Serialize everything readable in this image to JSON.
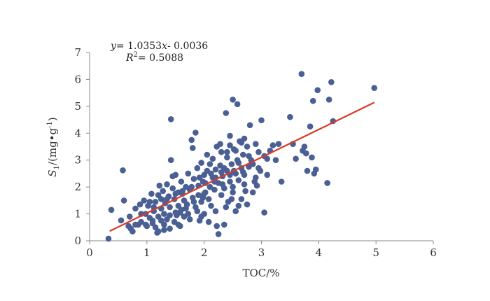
{
  "chart_data": {
    "type": "scatter",
    "title": "",
    "xlabel": "TOC/%",
    "ylabel_main": "S",
    "ylabel_sub": "1",
    "ylabel_unit": "/(mg•g",
    "ylabel_sup": "-1",
    "ylabel_close": ")",
    "xlim": [
      0,
      6
    ],
    "ylim": [
      0,
      7
    ],
    "x_ticks": [
      "0",
      "1",
      "2",
      "3",
      "4",
      "5",
      "6"
    ],
    "y_ticks": [
      "0",
      "1",
      "2",
      "3",
      "4",
      "5",
      "6",
      "7"
    ],
    "grid": false,
    "legend": "none",
    "equation": {
      "y_var": "y",
      "y_rest": "= 1.0353",
      "x_var": "x",
      "x_rest": "- 0.0036",
      "r_var": "R",
      "r_sup": "2",
      "r_rest": "=  0.5088"
    },
    "trendline": {
      "slope": 1.0353,
      "intercept": -0.0036,
      "x_start": 0.35,
      "x_end": 4.97
    },
    "colors": {
      "points": "#4a5f94",
      "trendline": "#d83b2a",
      "axis": "#888888"
    },
    "series": [
      {
        "points": [
          [
            0.33,
            0.08
          ],
          [
            0.38,
            1.15
          ],
          [
            0.55,
            0.76
          ],
          [
            0.58,
            2.62
          ],
          [
            0.6,
            1.5
          ],
          [
            0.7,
            0.9
          ],
          [
            0.72,
            0.45
          ],
          [
            0.75,
            0.35
          ],
          [
            0.8,
            1.2
          ],
          [
            0.85,
            0.6
          ],
          [
            0.88,
            1.35
          ],
          [
            0.9,
            0.7
          ],
          [
            0.95,
            1.5
          ],
          [
            0.98,
            1.0
          ],
          [
            1.0,
            0.55
          ],
          [
            1.02,
            1.3
          ],
          [
            1.05,
            0.85
          ],
          [
            1.08,
            1.75
          ],
          [
            1.1,
            0.65
          ],
          [
            1.12,
            1.1
          ],
          [
            1.15,
            1.45
          ],
          [
            1.15,
            0.5
          ],
          [
            1.18,
            0.3
          ],
          [
            1.2,
            0.9
          ],
          [
            1.2,
            1.7
          ],
          [
            1.22,
            2.05
          ],
          [
            1.25,
            0.75
          ],
          [
            1.25,
            1.2
          ],
          [
            1.28,
            1.85
          ],
          [
            1.3,
            0.6
          ],
          [
            1.3,
            1.0
          ],
          [
            1.32,
            1.4
          ],
          [
            1.35,
            0.8
          ],
          [
            1.35,
            2.1
          ],
          [
            1.38,
            1.65
          ],
          [
            1.4,
            0.45
          ],
          [
            1.4,
            1.25
          ],
          [
            1.42,
            4.52
          ],
          [
            1.42,
            3.0
          ],
          [
            1.45,
            2.4
          ],
          [
            1.45,
            1.95
          ],
          [
            1.48,
            0.7
          ],
          [
            1.48,
            1.55
          ],
          [
            1.5,
            1.05
          ],
          [
            1.5,
            2.45
          ],
          [
            1.52,
            0.95
          ],
          [
            1.55,
            1.8
          ],
          [
            1.55,
            1.3
          ],
          [
            1.58,
            0.55
          ],
          [
            1.6,
            1.15
          ],
          [
            1.6,
            2.2
          ],
          [
            1.62,
            1.75
          ],
          [
            1.65,
            1.5
          ],
          [
            1.65,
            0.9
          ],
          [
            1.68,
            2.0
          ],
          [
            1.7,
            1.35
          ],
          [
            1.72,
            2.5
          ],
          [
            1.75,
            1.9
          ],
          [
            1.75,
            0.8
          ],
          [
            1.78,
            3.75
          ],
          [
            1.8,
            3.45
          ],
          [
            1.8,
            1.6
          ],
          [
            1.82,
            2.3
          ],
          [
            1.85,
            4.02
          ],
          [
            1.85,
            1.25
          ],
          [
            1.88,
            2.7
          ],
          [
            1.9,
            2.05
          ],
          [
            1.9,
            1.7
          ],
          [
            1.92,
            0.75
          ],
          [
            1.95,
            2.9
          ],
          [
            1.95,
            1.45
          ],
          [
            1.98,
            2.2
          ],
          [
            2.0,
            1.0
          ],
          [
            2.0,
            2.45
          ],
          [
            2.02,
            1.8
          ],
          [
            2.05,
            3.2
          ],
          [
            2.05,
            2.6
          ],
          [
            2.08,
            1.55
          ],
          [
            2.1,
            2.0
          ],
          [
            2.1,
            2.85
          ],
          [
            2.12,
            1.3
          ],
          [
            2.15,
            2.35
          ],
          [
            2.15,
            3.05
          ],
          [
            2.18,
            1.9
          ],
          [
            2.2,
            2.65
          ],
          [
            2.2,
            1.1
          ],
          [
            2.22,
            3.5
          ],
          [
            2.25,
            2.15
          ],
          [
            2.25,
            0.25
          ],
          [
            2.28,
            2.8
          ],
          [
            2.3,
            1.7
          ],
          [
            2.3,
            3.3
          ],
          [
            2.32,
            2.4
          ],
          [
            2.35,
            0.6
          ],
          [
            2.35,
            1.95
          ],
          [
            2.38,
            4.75
          ],
          [
            2.4,
            2.6
          ],
          [
            2.4,
            3.1
          ],
          [
            2.42,
            1.45
          ],
          [
            2.45,
            2.2
          ],
          [
            2.45,
            3.9
          ],
          [
            2.48,
            2.85
          ],
          [
            2.5,
            1.8
          ],
          [
            2.5,
            5.25
          ],
          [
            2.52,
            3.4
          ],
          [
            2.55,
            2.5
          ],
          [
            2.55,
            1.1
          ],
          [
            2.58,
            3.0
          ],
          [
            2.58,
            5.08
          ],
          [
            2.6,
            2.25
          ],
          [
            2.62,
            3.7
          ],
          [
            2.65,
            2.7
          ],
          [
            2.65,
            1.55
          ],
          [
            2.68,
            3.2
          ],
          [
            2.7,
            2.45
          ],
          [
            2.72,
            1.85
          ],
          [
            2.75,
            3.5
          ],
          [
            2.78,
            2.75
          ],
          [
            2.8,
            4.3
          ],
          [
            2.82,
            3.0
          ],
          [
            2.85,
            1.8
          ],
          [
            2.88,
            2.2
          ],
          [
            2.9,
            3.6
          ],
          [
            2.92,
            2.05
          ],
          [
            2.95,
            3.3
          ],
          [
            2.98,
            2.6
          ],
          [
            3.0,
            4.48
          ],
          [
            3.05,
            3.15
          ],
          [
            3.05,
            1.05
          ],
          [
            3.1,
            2.45
          ],
          [
            3.15,
            3.35
          ],
          [
            3.2,
            3.55
          ],
          [
            3.25,
            3.0
          ],
          [
            3.3,
            3.6
          ],
          [
            3.35,
            2.2
          ],
          [
            3.5,
            4.6
          ],
          [
            3.55,
            3.6
          ],
          [
            3.6,
            3.05
          ],
          [
            3.7,
            6.2
          ],
          [
            3.72,
            3.35
          ],
          [
            3.75,
            3.5
          ],
          [
            3.78,
            3.25
          ],
          [
            3.8,
            2.6
          ],
          [
            3.85,
            4.25
          ],
          [
            3.88,
            3.1
          ],
          [
            3.9,
            5.2
          ],
          [
            3.92,
            2.5
          ],
          [
            3.95,
            2.65
          ],
          [
            3.98,
            5.6
          ],
          [
            4.15,
            2.15
          ],
          [
            4.18,
            5.25
          ],
          [
            4.22,
            5.9
          ],
          [
            4.25,
            4.45
          ],
          [
            4.97,
            5.68
          ],
          [
            2.5,
            2.0
          ],
          [
            2.6,
            2.9
          ],
          [
            2.7,
            2.1
          ],
          [
            2.35,
            2.7
          ],
          [
            2.28,
            3.6
          ],
          [
            2.12,
            2.5
          ],
          [
            1.98,
            1.6
          ],
          [
            1.88,
            1.1
          ],
          [
            1.72,
            1.0
          ],
          [
            1.55,
            0.6
          ],
          [
            1.4,
            0.95
          ],
          [
            1.3,
            0.4
          ],
          [
            1.2,
            0.35
          ],
          [
            1.1,
            0.75
          ],
          [
            0.98,
            0.6
          ],
          [
            2.45,
            3.55
          ],
          [
            2.55,
            3.35
          ],
          [
            2.65,
            3.65
          ],
          [
            2.4,
            3.3
          ],
          [
            2.9,
            2.35
          ],
          [
            2.75,
            1.35
          ],
          [
            2.6,
            1.3
          ],
          [
            2.48,
            1.55
          ],
          [
            2.38,
            1.25
          ],
          [
            2.22,
            0.55
          ],
          [
            2.08,
            0.7
          ],
          [
            1.95,
            0.9
          ],
          [
            1.82,
            1.45
          ],
          [
            1.68,
            1.2
          ],
          [
            1.58,
            1.05
          ],
          [
            2.02,
            2.15
          ],
          [
            2.18,
            2.2
          ],
          [
            2.32,
            2.1
          ],
          [
            2.52,
            2.6
          ],
          [
            2.68,
            2.55
          ],
          [
            2.85,
            2.85
          ],
          [
            2.95,
            2.7
          ],
          [
            3.1,
            3.05
          ],
          [
            1.92,
            2.35
          ],
          [
            1.78,
            2.0
          ],
          [
            1.62,
            1.85
          ],
          [
            1.5,
            1.75
          ],
          [
            1.35,
            1.55
          ],
          [
            1.25,
            1.55
          ],
          [
            1.12,
            1.25
          ],
          [
            1.05,
            1.45
          ],
          [
            0.9,
            1.0
          ],
          [
            0.8,
            0.6
          ],
          [
            0.68,
            0.55
          ],
          [
            2.7,
            3.8
          ],
          [
            2.45,
            2.45
          ],
          [
            2.3,
            2.55
          ],
          [
            2.2,
            2.35
          ],
          [
            2.0,
            1.75
          ],
          [
            2.78,
            3.15
          ]
        ]
      }
    ]
  }
}
